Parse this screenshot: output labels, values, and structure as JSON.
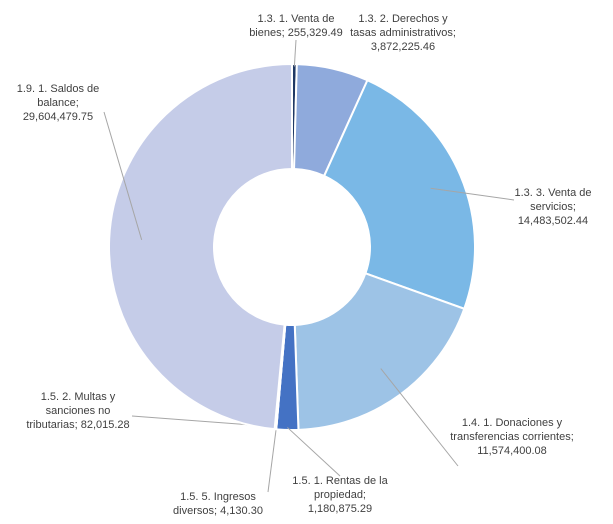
{
  "chart_data": {
    "type": "donut",
    "categories": [
      "1.3. 1. Venta de bienes;",
      "1.3. 2. Derechos y tasas administrativos;",
      "1.3. 3. Venta de servicios;",
      "1.4. 1. Donaciones y transferencias corrientes;",
      "1.5. 1. Rentas de la propiedad;",
      "1.5. 5. Ingresos diversos;",
      "1.5. 2. Multas y sanciones no tributarias;",
      "1.9. 1. Saldos de balance;"
    ],
    "values": [
      255329.49,
      3872225.46,
      14483502.44,
      11574400.08,
      1180875.29,
      4130.3,
      82015.28,
      29604479.75
    ],
    "value_labels": [
      "255,329.49",
      "3,872,225.46",
      "14,483,502.44",
      "11,574,400.08",
      "1,180,875.29",
      "4,130.30",
      "82,015.28",
      "29,604,479.75"
    ],
    "colors": [
      "#1f3864",
      "#8faadc",
      "#7ab8e6",
      "#9dc3e6",
      "#4472c4",
      "#2f5597",
      "#b4c7e7",
      "#c5cce8"
    ]
  }
}
